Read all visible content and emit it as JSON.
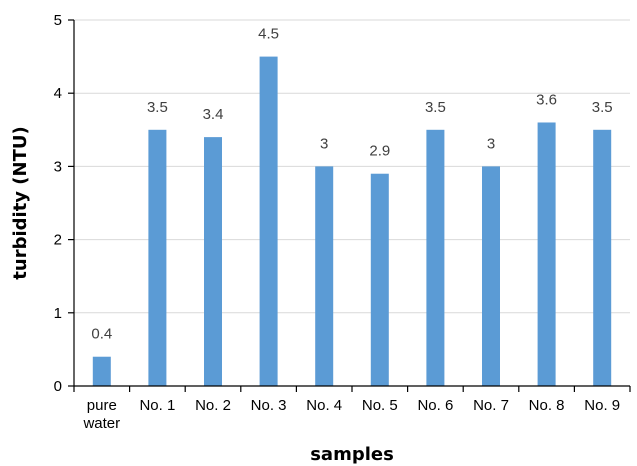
{
  "chart_data": {
    "type": "bar",
    "categories": [
      "pure water",
      "No. 1",
      "No. 2",
      "No. 3",
      "No. 4",
      "No. 5",
      "No. 6",
      "No. 7",
      "No. 8",
      "No. 9"
    ],
    "values": [
      0.4,
      3.5,
      3.4,
      4.5,
      3,
      2.9,
      3.5,
      3,
      3.6,
      3.5
    ],
    "data_labels": [
      "0.4",
      "3.5",
      "3.4",
      "4.5",
      "3",
      "2.9",
      "3.5",
      "3",
      "3.6",
      "3.5"
    ],
    "title": "",
    "xlabel": "samples",
    "ylabel": "turbidity (NTU)",
    "ylim": [
      0,
      5
    ],
    "yticks": [
      "0",
      "1",
      "2",
      "3",
      "4",
      "5"
    ],
    "grid": true,
    "legend": "none",
    "bar_color": "#5B9BD5",
    "highlight_label": "4.5",
    "highlight_label_color": "#000000"
  }
}
